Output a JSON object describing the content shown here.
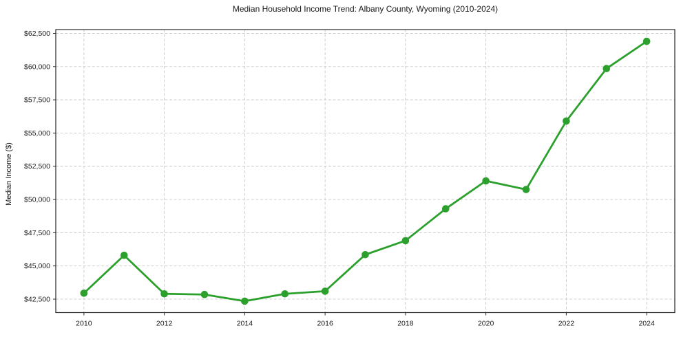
{
  "colors": {
    "line": "#2ca02c",
    "marker": "#2ca02c",
    "grid": "#c9c9c9",
    "frame": "#262626",
    "text": "#1a1a1a",
    "background": "#ffffff"
  },
  "chart_data": {
    "type": "line",
    "title": "Median Household Income Trend: Albany County, Wyoming (2010-2024)",
    "xlabel": "",
    "ylabel": "Median Income ($)",
    "x": [
      2010,
      2011,
      2012,
      2013,
      2014,
      2015,
      2016,
      2017,
      2018,
      2019,
      2020,
      2021,
      2022,
      2023,
      2024
    ],
    "values": [
      42950,
      45800,
      42900,
      42850,
      42350,
      42900,
      43100,
      45850,
      46900,
      49300,
      51400,
      50750,
      55900,
      59850,
      61900
    ],
    "xlim": [
      2009.3,
      2024.7
    ],
    "ylim": [
      41490,
      62785
    ],
    "x_ticks": [
      2010,
      2012,
      2014,
      2016,
      2018,
      2020,
      2022,
      2024
    ],
    "x_tick_labels": [
      "2010",
      "2012",
      "2014",
      "2016",
      "2018",
      "2020",
      "2022",
      "2024"
    ],
    "y_ticks": [
      42500,
      45000,
      47500,
      50000,
      52500,
      55000,
      57500,
      60000,
      62500
    ],
    "y_tick_labels": [
      "$42,500",
      "$45,000",
      "$47,500",
      "$50,000",
      "$52,500",
      "$55,000",
      "$57,500",
      "$60,000",
      "$62,500"
    ],
    "grid": true,
    "grid_style": "dashed",
    "legend": false,
    "marker": "circle"
  }
}
